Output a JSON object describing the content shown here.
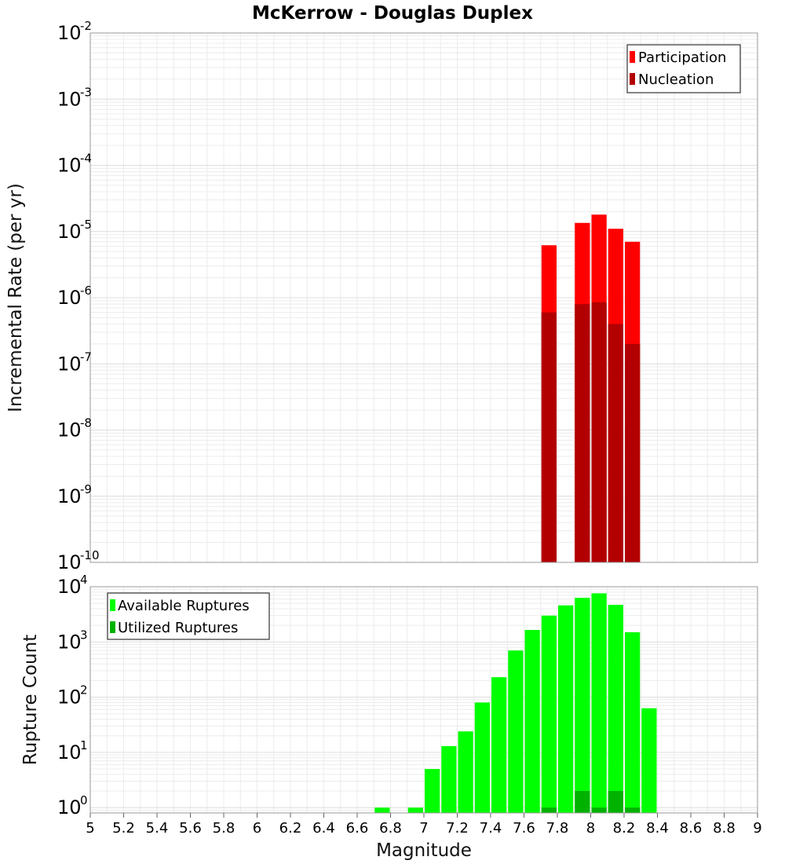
{
  "chart_data": [
    {
      "type": "bar",
      "title": "McKerrow - Douglas Duplex",
      "ylabel": "Incremental Rate (per yr)",
      "xlabel": "",
      "yscale": "log",
      "ylim": [
        1e-10,
        0.01
      ],
      "xlim": [
        5,
        9
      ],
      "grid": true,
      "legend_position": "top-right",
      "y_ticks": [
        {
          "base": "10",
          "exp": "-10"
        },
        {
          "base": "10",
          "exp": "-9"
        },
        {
          "base": "10",
          "exp": "-8"
        },
        {
          "base": "10",
          "exp": "-7"
        },
        {
          "base": "10",
          "exp": "-6"
        },
        {
          "base": "10",
          "exp": "-5"
        },
        {
          "base": "10",
          "exp": "-4"
        },
        {
          "base": "10",
          "exp": "-3"
        },
        {
          "base": "10",
          "exp": "-2"
        }
      ],
      "series": [
        {
          "name": "Participation",
          "color": "#ff0000",
          "x": [
            7.75,
            7.95,
            8.05,
            8.15,
            8.25
          ],
          "values": [
            6.2e-06,
            1.35e-05,
            1.8e-05,
            1.1e-05,
            7e-06
          ]
        },
        {
          "name": "Nucleation",
          "color": "#b20000",
          "x": [
            7.75,
            7.95,
            8.05,
            8.15,
            8.25
          ],
          "values": [
            6e-07,
            8e-07,
            8.5e-07,
            4e-07,
            2e-07
          ]
        }
      ]
    },
    {
      "type": "bar",
      "title": "",
      "ylabel": "Rupture Count",
      "xlabel": "Magnitude",
      "yscale": "log",
      "ylim": [
        0.8,
        10000
      ],
      "xlim": [
        5,
        9
      ],
      "grid": true,
      "legend_position": "top-left",
      "y_ticks": [
        {
          "value": 1,
          "base": "10",
          "exp": "0"
        },
        {
          "value": 10,
          "base": "10",
          "exp": "1"
        },
        {
          "value": 100,
          "base": "10",
          "exp": "2"
        },
        {
          "value": 1000,
          "base": "10",
          "exp": "3"
        },
        {
          "value": 10000,
          "base": "10",
          "exp": "4"
        }
      ],
      "x_ticks": [
        "5",
        "5.2",
        "5.4",
        "5.6",
        "5.8",
        "6",
        "6.2",
        "6.4",
        "6.6",
        "6.8",
        "7",
        "7.2",
        "7.4",
        "7.6",
        "7.8",
        "8",
        "8.2",
        "8.4",
        "8.6",
        "8.8",
        "9"
      ],
      "series": [
        {
          "name": "Available Ruptures",
          "color": "#00ff00",
          "x": [
            6.75,
            6.95,
            7.05,
            7.15,
            7.25,
            7.35,
            7.45,
            7.55,
            7.65,
            7.75,
            7.85,
            7.95,
            8.05,
            8.15,
            8.25,
            8.35
          ],
          "values": [
            1,
            1,
            5,
            13,
            24,
            80,
            230,
            700,
            1650,
            3000,
            4600,
            6300,
            7600,
            4700,
            1500,
            63
          ]
        },
        {
          "name": "Utilized Ruptures",
          "color": "#00b200",
          "x": [
            7.75,
            7.95,
            8.05,
            8.15,
            8.25
          ],
          "values": [
            1,
            2,
            1,
            2,
            1
          ]
        }
      ]
    }
  ]
}
